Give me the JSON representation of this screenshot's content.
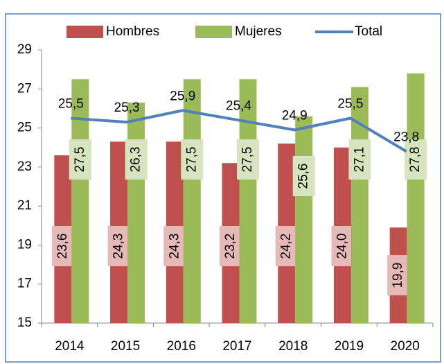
{
  "chart_data": {
    "type": "bar",
    "categories": [
      "2014",
      "2015",
      "2016",
      "2017",
      "2018",
      "2019",
      "2020"
    ],
    "series": [
      {
        "name": "Hombres",
        "color": "#c0504d",
        "label_color": "#e6b9b8",
        "values": [
          23.6,
          24.3,
          24.3,
          23.2,
          24.2,
          24.0,
          19.9
        ],
        "value_labels": [
          "23,6",
          "24,3",
          "24,3",
          "23,2",
          "24,2",
          "24,0",
          "19,9"
        ]
      },
      {
        "name": "Mujeres",
        "color": "#9bbb59",
        "label_color": "#d7e4bd",
        "values": [
          27.5,
          26.3,
          27.5,
          27.5,
          25.6,
          27.1,
          27.8
        ],
        "value_labels": [
          "27,5",
          "26,3",
          "27,5",
          "27,5",
          "25,6",
          "27,1",
          "27,8"
        ]
      },
      {
        "name": "Total",
        "type": "line",
        "color": "#4f81bd",
        "values": [
          25.5,
          25.3,
          25.9,
          25.4,
          24.9,
          25.5,
          23.8
        ],
        "value_labels": [
          "25,5",
          "25,3",
          "25,9",
          "25,4",
          "24,9",
          "25,5",
          "23,8"
        ]
      }
    ],
    "ylim": [
      15,
      29
    ],
    "yticks": [
      15,
      17,
      19,
      21,
      23,
      25,
      27,
      29
    ],
    "grid": false,
    "legend": "top"
  }
}
